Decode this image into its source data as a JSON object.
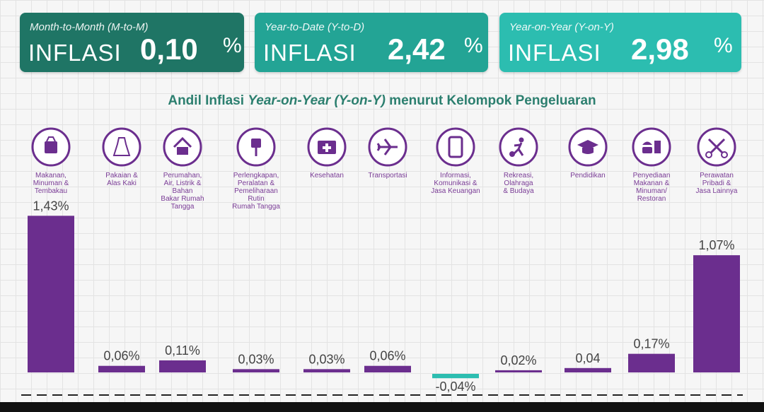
{
  "cards": {
    "mtm": {
      "subtitle": "Month-to-Month (M-to-M)",
      "label": "INFLASI",
      "value": "0,10",
      "unit": "%"
    },
    "ytd": {
      "subtitle": "Year-to-Date (Y-to-D)",
      "label": "INFLASI",
      "value": "2,42",
      "unit": "%"
    },
    "yoy": {
      "subtitle": "Year-on-Year (Y-on-Y)",
      "label": "INFLASI",
      "value": "2,98",
      "unit": "%"
    }
  },
  "title_parts": {
    "a": "Andil Inflasi ",
    "b": "Year-on-Year (Y-on-Y)",
    "c": " menurut Kelompok Pengeluaran"
  },
  "colors": {
    "bar": "#6b2e8e",
    "negative_bar": "#2cbdb0",
    "icon": "#6b2e8e"
  },
  "chart_data": {
    "type": "bar",
    "title": "Andil Inflasi Year-on-Year (Y-on-Y) menurut Kelompok Pengeluaran",
    "categories": [
      "Makanan, Minuman & Tembakau",
      "Pakaian & Alas Kaki",
      "Perumahan, Air, Listrik & Bahan Bakar Rumah Tangga",
      "Perlengkapan, Peralatan & Pemeliharaan Rutin Rumah Tangga",
      "Kesehatan",
      "Transportasi",
      "Informasi, Komunikasi & Jasa Keuangan",
      "Rekreasi, Olahraga & Budaya",
      "Pendidikan",
      "Penyediaan Makanan & Minuman/ Restoran",
      "Perawatan Pribadi & Jasa Lainnya"
    ],
    "category_lines": [
      [
        "Makanan,",
        "Minuman &",
        "Tembakau"
      ],
      [
        "Pakaian &",
        "Alas Kaki"
      ],
      [
        "Perumahan,",
        "Air, Listrik &",
        "Bahan",
        "Bakar Rumah",
        "Tangga"
      ],
      [
        "Perlengkapan,",
        "Peralatan &",
        "Pemeliharaan",
        "Rutin",
        "Rumah Tangga"
      ],
      [
        "Kesehatan"
      ],
      [
        "Transportasi"
      ],
      [
        "Informasi,",
        "Komunikasi &",
        "Jasa Keuangan"
      ],
      [
        "Rekreasi,",
        "Olahraga",
        "& Budaya"
      ],
      [
        "Pendidikan"
      ],
      [
        "Penyediaan",
        "Makanan &",
        "Minuman/",
        "Restoran"
      ],
      [
        "Perawatan",
        "Pribadi &",
        "Jasa Lainnya"
      ]
    ],
    "icons": [
      "grocery-bag-icon",
      "dress-icon",
      "house-icon",
      "plug-icon",
      "medical-kit-icon",
      "airplane-icon",
      "smartphone-icon",
      "soccer-player-icon",
      "graduation-cap-icon",
      "fast-food-icon",
      "scissors-comb-icon"
    ],
    "values": [
      1.43,
      0.06,
      0.11,
      0.03,
      0.03,
      0.06,
      -0.04,
      0.02,
      0.04,
      0.17,
      1.07
    ],
    "value_labels": [
      "1,43%",
      "0,06%",
      "0,11%",
      "0,03%",
      "0,03%",
      "0,06%",
      "-0,04%",
      "0,02%",
      "0,04",
      "0,17%",
      "1,07%"
    ],
    "unit": "%",
    "grid": true
  }
}
